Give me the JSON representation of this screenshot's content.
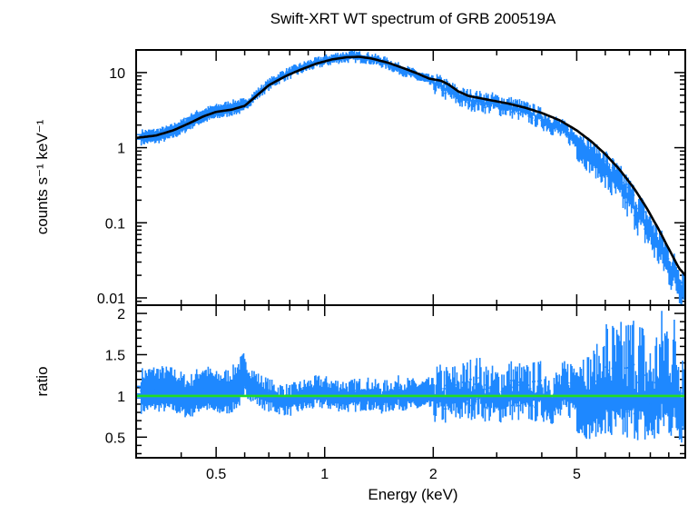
{
  "chart_data": [
    {
      "type": "line",
      "title": "Swift-XRT WT spectrum of GRB 200519A",
      "xlabel": "Energy (keV)",
      "ylabel": "counts s⁻¹ keV⁻¹",
      "x_scale": "log",
      "y_scale": "log",
      "xlim": [
        0.3,
        10
      ],
      "ylim": [
        0.008,
        20
      ],
      "x_ticks": [
        {
          "value": 0.5,
          "label": "0.5"
        },
        {
          "value": 1,
          "label": "1"
        },
        {
          "value": 2,
          "label": "2"
        },
        {
          "value": 5,
          "label": "5"
        }
      ],
      "y_ticks": [
        {
          "value": 0.01,
          "label": "0.01"
        },
        {
          "value": 0.1,
          "label": "0.1"
        },
        {
          "value": 1,
          "label": "1"
        },
        {
          "value": 10,
          "label": "10"
        }
      ],
      "grid": false,
      "series": [
        {
          "role": "data",
          "color": "#1e88ff",
          "x": [
            0.31,
            0.34,
            0.37,
            0.4,
            0.44,
            0.48,
            0.52,
            0.56,
            0.6,
            0.65,
            0.7,
            0.76,
            0.82,
            0.9,
            1.0,
            1.1,
            1.2,
            1.3,
            1.45,
            1.6,
            1.8,
            2.0,
            2.2,
            2.4,
            2.7,
            3.0,
            3.4,
            3.8,
            4.3,
            4.8,
            5.3,
            5.9,
            6.5,
            7.1,
            7.8,
            8.5,
            9.2,
            9.8
          ],
          "y": [
            1.4,
            1.45,
            1.6,
            1.9,
            2.5,
            2.9,
            3.2,
            3.5,
            3.7,
            5.2,
            7.0,
            9.0,
            10.5,
            12.5,
            14.5,
            16.0,
            16.5,
            16.0,
            14.0,
            11.5,
            9.2,
            7.6,
            5.9,
            4.7,
            4.2,
            3.9,
            3.4,
            2.8,
            2.1,
            1.5,
            0.95,
            0.6,
            0.35,
            0.21,
            0.1,
            0.05,
            0.025,
            0.016
          ]
        },
        {
          "role": "model",
          "color": "#000000",
          "x": [
            0.3,
            0.34,
            0.38,
            0.42,
            0.46,
            0.5,
            0.55,
            0.6,
            0.65,
            0.7,
            0.78,
            0.86,
            0.95,
            1.05,
            1.15,
            1.25,
            1.35,
            1.5,
            1.65,
            1.8,
            1.95,
            2.1,
            2.2,
            2.35,
            2.5,
            2.8,
            3.2,
            3.6,
            4.0,
            4.5,
            5.0,
            5.5,
            6.0,
            6.6,
            7.2,
            7.8,
            8.4,
            9.0,
            9.6,
            10.0
          ],
          "y": [
            1.35,
            1.45,
            1.7,
            2.1,
            2.6,
            3.0,
            3.2,
            3.6,
            5.0,
            6.8,
            9.0,
            11.0,
            13.2,
            15.0,
            16.0,
            16.2,
            15.4,
            13.5,
            11.5,
            9.8,
            8.3,
            7.8,
            7.0,
            5.6,
            4.9,
            4.4,
            3.9,
            3.4,
            2.9,
            2.3,
            1.7,
            1.2,
            0.82,
            0.5,
            0.29,
            0.16,
            0.085,
            0.045,
            0.025,
            0.02
          ]
        }
      ]
    },
    {
      "type": "line",
      "xlabel": "Energy (keV)",
      "ylabel": "ratio",
      "x_scale": "log",
      "y_scale": "linear",
      "xlim": [
        0.3,
        10
      ],
      "ylim": [
        0.25,
        2.1
      ],
      "x_ticks": [
        {
          "value": 0.5,
          "label": "0.5"
        },
        {
          "value": 1,
          "label": "1"
        },
        {
          "value": 2,
          "label": "2"
        },
        {
          "value": 5,
          "label": "5"
        }
      ],
      "y_ticks": [
        {
          "value": 0.5,
          "label": "0.5"
        },
        {
          "value": 1,
          "label": "1"
        },
        {
          "value": 1.5,
          "label": "1.5"
        },
        {
          "value": 2,
          "label": "2"
        }
      ],
      "grid": false,
      "reference_line": {
        "y": 1,
        "color": "#22dd22"
      },
      "series": [
        {
          "role": "ratio",
          "color": "#1e88ff",
          "x": [
            0.31,
            0.34,
            0.38,
            0.42,
            0.46,
            0.5,
            0.55,
            0.6,
            0.66,
            0.73,
            0.8,
            0.88,
            0.97,
            1.07,
            1.18,
            1.3,
            1.44,
            1.6,
            1.77,
            1.96,
            2.17,
            2.4,
            2.65,
            2.95,
            3.25,
            3.6,
            4.0,
            4.4,
            4.9,
            5.4,
            6.0,
            6.6,
            7.3,
            8.0,
            8.8,
            9.6
          ],
          "y": [
            1.05,
            1.08,
            1.06,
            0.97,
            1.1,
            1.02,
            1.05,
            1.22,
            1.05,
            0.97,
            0.94,
            1.0,
            1.04,
            1.01,
            0.99,
            1.02,
            0.97,
            1.03,
            1.0,
            1.01,
            0.98,
            1.02,
            1.08,
            0.97,
            1.05,
            1.0,
            1.03,
            0.96,
            1.1,
            0.93,
            1.08,
            1.0,
            1.15,
            0.9,
            1.2,
            1.05
          ]
        }
      ]
    }
  ]
}
